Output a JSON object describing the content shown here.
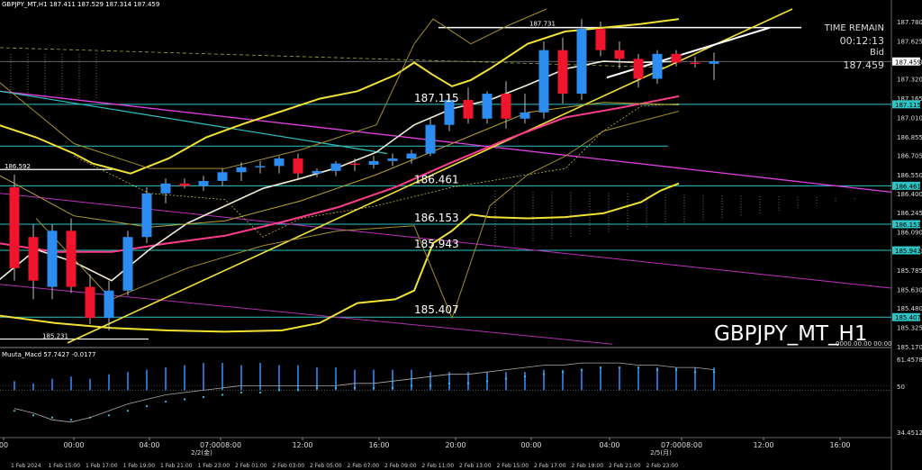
{
  "header": {
    "info": "GBPJPY_MT,H1  187.411 187.529 187.314 187.459"
  },
  "symbol_label": "GBPJPY_MT_H1",
  "time_remain": {
    "title": "TIME REMAIN",
    "value": "00:12:13"
  },
  "bid": {
    "title": "Bid",
    "value": "187.459"
  },
  "indicator_label": "Muuta_Macd 57.7427  -0.0177",
  "indicator_reading": "0000.00.00 00:00",
  "chart_data": {
    "type": "candlestick",
    "ylim": [
      185.17,
      187.88
    ],
    "price_ticks": [
      "187.780",
      "187.625",
      "187.459",
      "187.320",
      "187.165",
      "187.010",
      "186.855",
      "186.705",
      "186.550",
      "186.400",
      "186.245",
      "186.090",
      "185.940",
      "185.785",
      "185.630",
      "185.480",
      "185.325",
      "185.170"
    ],
    "boxed_price_ticks": [
      {
        "label": "187.459",
        "value": 187.459,
        "color": "#ffffff"
      },
      {
        "label": "187.115",
        "value": 187.115,
        "color": "#2ec4c4"
      },
      {
        "label": "186.461",
        "value": 186.461,
        "color": "#2ec4c4"
      },
      {
        "label": "186.153",
        "value": 186.153,
        "color": "#2ec4c4"
      },
      {
        "label": "185.943",
        "value": 185.943,
        "color": "#2ec4c4"
      },
      {
        "label": "185.407",
        "value": 185.407,
        "color": "#2ec4c4"
      }
    ],
    "level_labels": [
      {
        "text": "187.731",
        "value": 187.731
      },
      {
        "text": "187.115",
        "value": 187.115
      },
      {
        "text": "186.461",
        "value": 186.461
      },
      {
        "text": "186.153",
        "value": 186.153
      },
      {
        "text": "185.943",
        "value": 185.943
      },
      {
        "text": "185.407",
        "value": 185.407
      },
      {
        "text": "186.592",
        "value": 186.592
      },
      {
        "text": "185.231",
        "value": 185.231
      }
    ],
    "upper_time_ticks": [
      "00",
      "00:00",
      "04:00",
      "07:0008:00",
      "12:00",
      "16:00",
      "20:00",
      "00:00",
      "04:00",
      "07:0008:00",
      "12:00",
      "16:00"
    ],
    "upper_time_day_labels": [
      "2/2(金)",
      "2/5(月)"
    ],
    "lower_time_ticks": [
      "1 Feb 2024",
      "1 Feb 15:00",
      "1 Feb 17:00",
      "1 Feb 19:00",
      "1 Feb 21:00",
      "1 Feb 23:00",
      "2 Feb 01:00",
      "2 Feb 03:00",
      "2 Feb 05:00",
      "2 Feb 07:00",
      "2 Feb 09:00",
      "2 Feb 11:00",
      "2 Feb 13:00",
      "2 Feb 15:00",
      "2 Feb 17:00",
      "2 Feb 19:00",
      "2 Feb 21:00",
      "2 Feb 23:00"
    ],
    "indicator_ticks": [
      "61.4578",
      "50",
      "34.4512"
    ],
    "candles": [
      [
        186.45,
        186.55,
        185.7,
        185.8
      ],
      [
        186.05,
        186.15,
        185.55,
        185.7
      ],
      [
        185.65,
        186.15,
        185.55,
        186.1
      ],
      [
        186.1,
        186.2,
        185.6,
        185.65
      ],
      [
        185.65,
        185.75,
        185.35,
        185.4
      ],
      [
        185.4,
        185.7,
        185.3,
        185.62
      ],
      [
        185.62,
        186.1,
        185.58,
        186.05
      ],
      [
        186.05,
        186.45,
        186.0,
        186.4
      ],
      [
        186.4,
        186.52,
        186.32,
        186.48
      ],
      [
        186.48,
        186.52,
        186.44,
        186.46
      ],
      [
        186.46,
        186.54,
        186.42,
        186.5
      ],
      [
        186.5,
        186.6,
        186.46,
        186.57
      ],
      [
        186.57,
        186.65,
        186.5,
        186.61
      ],
      [
        186.61,
        186.66,
        186.56,
        186.62
      ],
      [
        186.62,
        186.7,
        186.56,
        186.68
      ],
      [
        186.68,
        186.72,
        186.52,
        186.56
      ],
      [
        186.56,
        186.6,
        186.53,
        186.58
      ],
      [
        186.58,
        186.66,
        186.54,
        186.64
      ],
      [
        186.64,
        186.68,
        186.58,
        186.63
      ],
      [
        186.63,
        186.7,
        186.6,
        186.66
      ],
      [
        186.66,
        186.72,
        186.62,
        186.68
      ],
      [
        186.68,
        186.75,
        186.64,
        186.72
      ],
      [
        186.72,
        187.0,
        186.7,
        186.95
      ],
      [
        186.95,
        187.2,
        186.9,
        187.15
      ],
      [
        187.15,
        187.25,
        186.96,
        187.0
      ],
      [
        187.0,
        187.22,
        186.96,
        187.2
      ],
      [
        187.2,
        187.3,
        186.92,
        187.0
      ],
      [
        187.0,
        187.2,
        186.96,
        187.05
      ],
      [
        187.05,
        187.62,
        187.0,
        187.55
      ],
      [
        187.55,
        187.65,
        187.12,
        187.2
      ],
      [
        187.2,
        187.8,
        187.15,
        187.72
      ],
      [
        187.72,
        187.78,
        187.5,
        187.55
      ],
      [
        187.55,
        187.62,
        187.4,
        187.48
      ],
      [
        187.48,
        187.52,
        187.25,
        187.32
      ],
      [
        187.32,
        187.55,
        187.28,
        187.52
      ],
      [
        187.52,
        187.55,
        187.42,
        187.45
      ],
      [
        187.45,
        187.5,
        187.41,
        187.44
      ],
      [
        187.44,
        187.53,
        187.31,
        187.46
      ]
    ],
    "indicator": {
      "histogram": [
        48,
        47,
        49,
        50,
        49,
        51,
        52,
        53,
        54,
        55,
        56,
        56,
        55,
        56,
        55,
        55,
        54,
        54,
        53,
        53,
        53,
        53,
        52,
        52,
        52,
        52,
        52,
        52,
        53,
        53,
        53,
        54,
        54,
        54,
        54,
        54,
        54,
        54
      ],
      "signal": [
        41,
        39,
        38,
        37,
        38,
        39,
        41,
        43,
        45,
        46,
        47,
        48,
        49,
        49,
        50,
        50,
        51,
        51,
        51,
        51,
        51,
        52,
        52,
        53,
        53,
        54,
        55,
        56,
        57,
        58,
        59,
        60,
        60,
        60,
        59,
        59,
        58,
        58
      ],
      "macd": [
        42,
        40,
        37,
        36,
        38,
        41,
        44,
        46,
        48,
        49,
        50,
        51,
        52,
        52,
        52,
        52,
        52,
        52,
        53,
        53,
        54,
        55,
        56,
        57,
        57,
        58,
        59,
        60,
        61,
        61,
        62,
        62,
        62,
        61,
        61,
        60,
        60,
        59
      ]
    }
  }
}
